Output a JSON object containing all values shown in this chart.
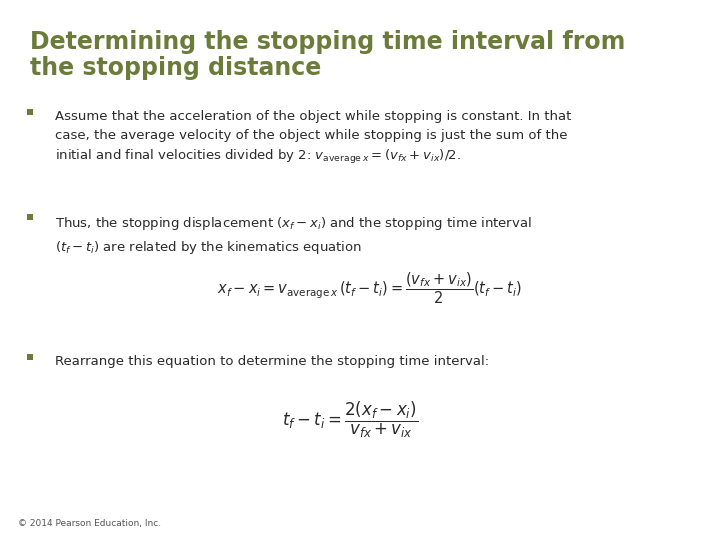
{
  "title_line1": "Determining the stopping time interval from",
  "title_line2": "the stopping distance",
  "title_color": "#6b7c3a",
  "title_fontsize": 17,
  "background_color": "#ffffff",
  "text_color": "#2a2a2a",
  "bullet_color": "#6b7c3a",
  "text_fontsize": 9.5,
  "copyright": "© 2014 Pearson Education, Inc.",
  "bullet1_plain": "Assume that the acceleration of the object while stopping is constant. In that\ncase, the average velocity of the object while stopping is just the sum of the\ninitial and final velocities divided by 2: ",
  "bullet1_math": "$v_{\\mathrm{average}\\,x} = (v_{fx} + v_{ix})/2.$",
  "bullet2": "Thus, the stopping displacement $(x_f - x_i)$ and the stopping time interval\n$(t_f - t_i)$ are related by the kinematics equation",
  "bullet3": "Rearrange this equation to determine the stopping time interval:",
  "eq1": "$x_f - x_i = v_{\\mathrm{average}\\,x}\\,(t_f - t_i) = \\dfrac{(v_{fx} + v_{ix})}{2}(t_f - t_i)$",
  "eq2": "$t_f - t_i = \\dfrac{2(x_f - x_i)}{v_{fx} + v_{ix}}$"
}
